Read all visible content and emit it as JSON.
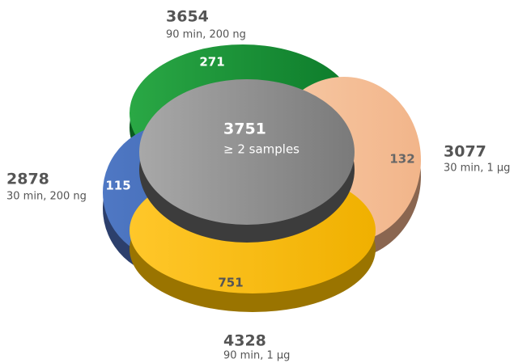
{
  "sets": [
    {
      "total": "3654",
      "condition": "90 min, 200 ng",
      "unique": "271"
    },
    {
      "total": "3077",
      "condition": "30 min, 1 µg",
      "unique": "132"
    },
    {
      "total": "2878",
      "condition": "30 min, 200 ng",
      "unique": "115"
    },
    {
      "total": "4328",
      "condition": "90 min, 1 µg",
      "unique": "751"
    }
  ],
  "overlap": {
    "count": "3751",
    "label": "≥ 2 samples"
  }
}
